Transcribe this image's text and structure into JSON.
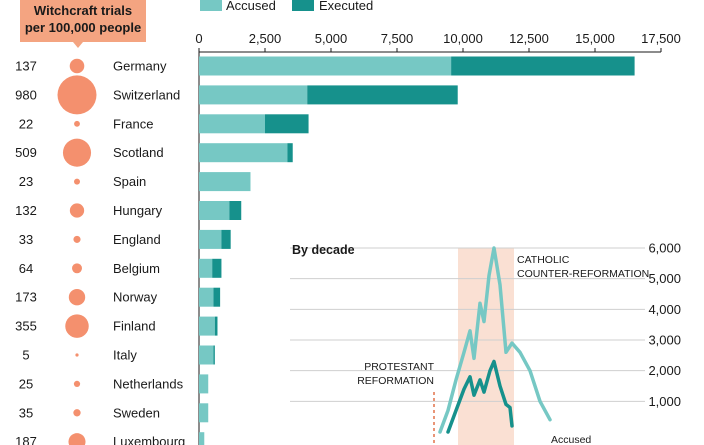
{
  "colors": {
    "accused": "#76c8c4",
    "executed": "#16918c",
    "bubble": "#f4906e",
    "callout_bg": "#f4a481",
    "band": "#fae0d3",
    "grid": "#cfcfcf",
    "axis": "#1a1a1a",
    "reformation_line": "#e2724a"
  },
  "legend": {
    "accused": "Accused",
    "executed": "Executed"
  },
  "callout": {
    "line1": "Witchcraft trials",
    "line2": "per 100,000 people"
  },
  "chart_data": [
    {
      "type": "bar",
      "stacked": true,
      "categories": [
        "Germany",
        "Switzerland",
        "France",
        "Scotland",
        "Spain",
        "Hungary",
        "England",
        "Belgium",
        "Norway",
        "Finland",
        "Italy",
        "Netherlands",
        "Sweden",
        "Luxembourg"
      ],
      "rate_per_100k_labels": [
        "137",
        "980",
        "22",
        "509",
        "23",
        "132",
        "33",
        "64",
        "173",
        "355",
        "5",
        "25",
        "35",
        "187"
      ],
      "rate_per_100k": [
        137,
        980,
        22,
        509,
        23,
        132,
        33,
        64,
        173,
        355,
        5,
        25,
        35,
        187
      ],
      "series": [
        {
          "name": "Accused",
          "values": [
            9550,
            4100,
            2500,
            3350,
            1950,
            1150,
            850,
            500,
            550,
            600,
            550,
            350,
            350,
            200
          ]
        },
        {
          "name": "Executed",
          "values": [
            6950,
            5700,
            1650,
            200,
            0,
            450,
            350,
            350,
            250,
            100,
            50,
            0,
            0,
            0
          ]
        }
      ],
      "xlim": [
        0,
        17500
      ],
      "xticks": [
        "0",
        "2,500",
        "5,000",
        "7,500",
        "10,000",
        "12,500",
        "15,000",
        "17,500"
      ],
      "legend_position": "top"
    },
    {
      "type": "line",
      "title": "By decade",
      "ylim": [
        0,
        6000
      ],
      "yticks": [
        "6,000",
        "5,000",
        "4,000",
        "3,000",
        "2,000",
        "1,000"
      ],
      "y_axis_position": "right",
      "series": [
        {
          "name": "Accused",
          "points": [
            [
              0,
              0
            ],
            [
              0.04,
              700
            ],
            [
              0.08,
              1700
            ],
            [
              0.12,
              2600
            ],
            [
              0.15,
              3300
            ],
            [
              0.17,
              2400
            ],
            [
              0.2,
              4200
            ],
            [
              0.22,
              3600
            ],
            [
              0.245,
              5100
            ],
            [
              0.27,
              6000
            ],
            [
              0.3,
              4800
            ],
            [
              0.33,
              2600
            ],
            [
              0.36,
              2900
            ],
            [
              0.4,
              2600
            ],
            [
              0.45,
              2000
            ],
            [
              0.5,
              1000
            ],
            [
              0.55,
              400
            ]
          ]
        },
        {
          "name": "Executed",
          "points": [
            [
              0.04,
              0
            ],
            [
              0.08,
              700
            ],
            [
              0.12,
              1400
            ],
            [
              0.15,
              1800
            ],
            [
              0.17,
              1200
            ],
            [
              0.2,
              1700
            ],
            [
              0.22,
              1300
            ],
            [
              0.25,
              2000
            ],
            [
              0.27,
              2300
            ],
            [
              0.3,
              1500
            ],
            [
              0.33,
              900
            ],
            [
              0.35,
              800
            ],
            [
              0.36,
              200
            ]
          ]
        }
      ],
      "annotations": [
        {
          "label": "PROTESTANT REFORMATION",
          "lines": [
            "PROTESTANT",
            "REFORMATION"
          ]
        },
        {
          "label": "CATHOLIC COUNTER-REFORMATION",
          "lines": [
            "CATHOLIC",
            "COUNTER-REFORMATION"
          ]
        }
      ],
      "line_labels": {
        "accused": "Accused"
      }
    }
  ]
}
